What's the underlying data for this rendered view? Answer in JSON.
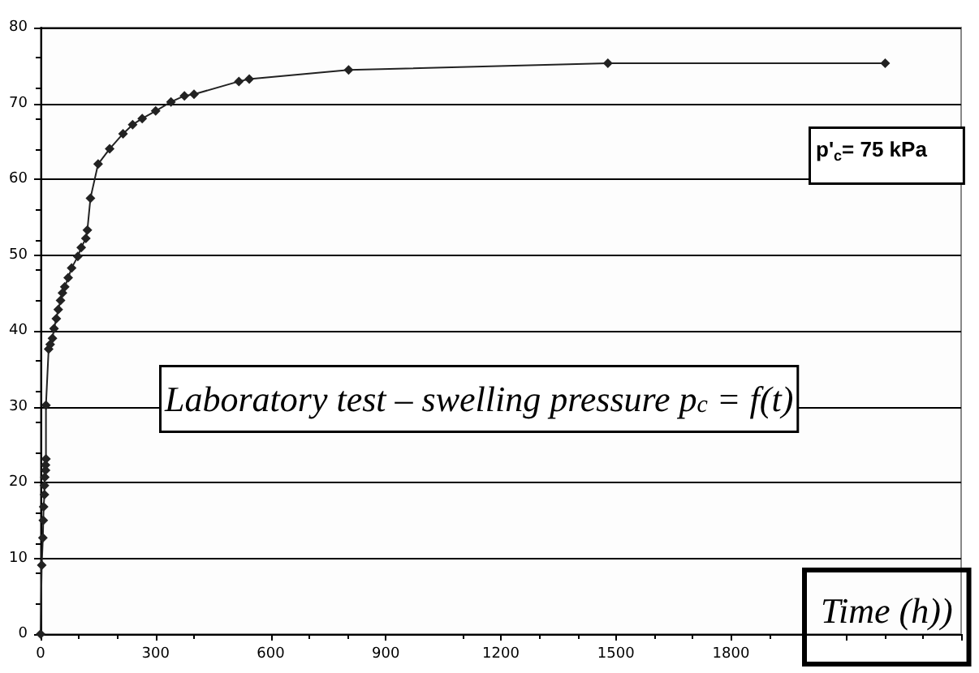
{
  "chart_data": {
    "type": "line",
    "xlabel": "Time (h))",
    "annotations": [
      "p'$_{c}$= 75 kPa",
      "Laboratory test – swelling pressure p$_{c}$ = f(t)"
    ],
    "x": [
      0,
      3,
      6,
      7,
      8,
      10,
      10,
      11,
      13,
      13,
      14,
      14,
      21,
      25,
      31,
      35,
      41,
      46,
      52,
      57,
      63,
      72,
      81,
      97,
      106,
      118,
      122,
      130,
      150,
      180,
      215,
      240,
      265,
      300,
      340,
      375,
      400,
      517,
      544,
      803,
      1479,
      2202
    ],
    "series": [
      {
        "color": "#222222",
        "values": [
          0,
          9.1,
          12.7,
          15,
          16.8,
          18.4,
          19.6,
          20.7,
          21.6,
          22.3,
          23.1,
          30.2,
          37.6,
          38.2,
          39,
          40.3,
          41.6,
          42.8,
          44,
          45,
          45.8,
          47,
          48.3,
          49.8,
          51,
          52.2,
          53.3,
          57.5,
          62,
          64,
          66,
          67.2,
          68,
          69,
          70.2,
          71,
          71.2,
          72.9,
          73.2,
          74.4,
          75.3,
          75.3
        ]
      }
    ],
    "xlim": [
      0,
      2400
    ],
    "xticks": [
      0,
      300,
      600,
      900,
      1200,
      1500,
      1800,
      {
        "value": 2100,
        "label": null
      },
      {
        "value": 2400,
        "label": null
      }
    ],
    "ylim": [
      0,
      80
    ],
    "yticks": [
      0,
      10,
      20,
      30,
      40,
      50,
      60,
      70,
      80
    ],
    "grid": "y",
    "marker": "diamond",
    "line_style": "solid"
  }
}
